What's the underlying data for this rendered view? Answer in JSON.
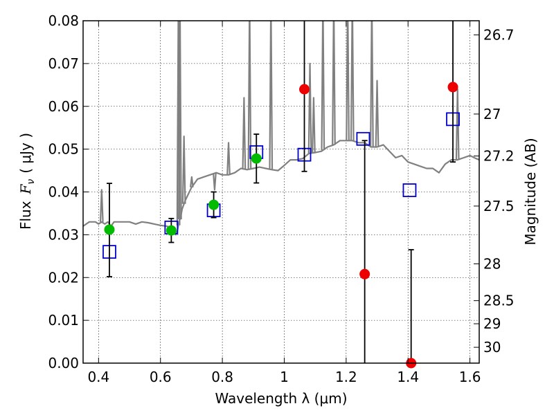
{
  "chart_data": {
    "type": "scatter",
    "xlabel": "Wavelength  λ (μm)",
    "ylabel": "Flux  F_ν  ( μJy )",
    "ylabel_parts": {
      "prefix": "Flux",
      "symbol": "F",
      "subscript": "ν",
      "unit": "( μJy )"
    },
    "y2label": "Magnitude (AB)",
    "xlim": [
      0.35,
      1.63
    ],
    "ylim": [
      0.0,
      0.08
    ],
    "x_ticks": [
      0.4,
      0.6,
      0.8,
      1.0,
      1.2,
      1.4,
      1.6
    ],
    "x_tick_labels": [
      "0.4",
      "0.6",
      "0.8",
      "1",
      "1.2",
      "1.4",
      "1.6"
    ],
    "y_ticks": [
      0.0,
      0.01,
      0.02,
      0.03,
      0.04,
      0.05,
      0.06,
      0.07,
      0.08
    ],
    "y_tick_labels": [
      "0.00",
      "0.01",
      "0.02",
      "0.03",
      "0.04",
      "0.05",
      "0.06",
      "0.07",
      "0.08"
    ],
    "y2_ticks": [
      {
        "label": "26.7",
        "flux": 0.0767
      },
      {
        "label": "27",
        "flux": 0.0582
      },
      {
        "label": "27.2",
        "flux": 0.0484
      },
      {
        "label": "27.5",
        "flux": 0.0367
      },
      {
        "label": "28",
        "flux": 0.0232
      },
      {
        "label": "28.5",
        "flux": 0.0146
      },
      {
        "label": "29",
        "flux": 0.0092
      },
      {
        "label": "30",
        "flux": 0.0037
      }
    ],
    "grid": true,
    "grid_style": "dotted",
    "colors": {
      "spectrum": "#808080",
      "detections": "#00bb00",
      "upper_limits": "#ee0000",
      "model": "#0000cc",
      "errorbars": "#000000"
    },
    "series": [
      {
        "style": "line",
        "x": [
          0.35,
          0.37,
          0.39,
          0.4,
          0.41,
          0.42,
          0.43,
          0.44,
          0.45,
          0.46,
          0.48,
          0.5,
          0.52,
          0.54,
          0.56,
          0.58,
          0.6,
          0.62,
          0.64,
          0.645,
          0.65,
          0.655,
          0.66,
          0.665,
          0.67,
          0.68,
          0.7,
          0.72,
          0.74,
          0.76,
          0.78,
          0.8,
          0.82,
          0.84,
          0.86,
          0.88,
          0.9,
          0.92,
          0.94,
          0.96,
          0.98,
          1.0,
          1.02,
          1.04,
          1.06,
          1.08,
          1.1,
          1.12,
          1.14,
          1.16,
          1.18,
          1.2,
          1.22,
          1.24,
          1.26,
          1.28,
          1.3,
          1.32,
          1.34,
          1.36,
          1.38,
          1.4,
          1.42,
          1.44,
          1.46,
          1.48,
          1.5,
          1.52,
          1.54,
          1.56,
          1.58,
          1.6,
          1.62,
          1.63
        ],
        "y": [
          0.032,
          0.033,
          0.033,
          0.0325,
          0.033,
          0.0325,
          0.033,
          0.032,
          0.033,
          0.033,
          0.033,
          0.033,
          0.0325,
          0.033,
          0.0328,
          0.0325,
          0.0322,
          0.032,
          0.0315,
          0.031,
          0.03,
          0.031,
          0.033,
          0.034,
          0.036,
          0.038,
          0.041,
          0.043,
          0.0435,
          0.044,
          0.0445,
          0.044,
          0.044,
          0.0445,
          0.0455,
          0.0452,
          0.0455,
          0.0458,
          0.0455,
          0.0452,
          0.045,
          0.0462,
          0.0475,
          0.0475,
          0.0478,
          0.049,
          0.0492,
          0.0495,
          0.0505,
          0.051,
          0.052,
          0.052,
          0.052,
          0.0515,
          0.0515,
          0.0505,
          0.0505,
          0.051,
          0.0495,
          0.048,
          0.0485,
          0.047,
          0.0465,
          0.046,
          0.0455,
          0.0455,
          0.0445,
          0.0465,
          0.0475,
          0.0475,
          0.048,
          0.0485,
          0.0478,
          0.0475
        ]
      },
      {
        "style": "peaks",
        "lines": [
          {
            "x": 0.41,
            "y": 0.0405
          },
          {
            "x": 0.658,
            "y": 0.085
          },
          {
            "x": 0.663,
            "y": 0.085
          },
          {
            "x": 0.676,
            "y": 0.053
          },
          {
            "x": 0.701,
            "y": 0.0435
          },
          {
            "x": 0.775,
            "y": 0.0405
          },
          {
            "x": 0.82,
            "y": 0.0515
          },
          {
            "x": 0.87,
            "y": 0.062
          },
          {
            "x": 0.888,
            "y": 0.085
          },
          {
            "x": 0.957,
            "y": 0.085
          },
          {
            "x": 1.083,
            "y": 0.07
          },
          {
            "x": 1.095,
            "y": 0.062
          },
          {
            "x": 1.125,
            "y": 0.085
          },
          {
            "x": 1.16,
            "y": 0.085
          },
          {
            "x": 1.205,
            "y": 0.085
          },
          {
            "x": 1.22,
            "y": 0.085
          },
          {
            "x": 1.283,
            "y": 0.085
          },
          {
            "x": 1.3,
            "y": 0.066
          },
          {
            "x": 1.56,
            "y": 0.064
          }
        ]
      },
      {
        "style": "model-squares",
        "x": [
          0.435,
          0.635,
          0.772,
          0.91,
          1.065,
          1.255,
          1.405,
          1.545
        ],
        "y": [
          0.026,
          0.0317,
          0.0357,
          0.0493,
          0.0487,
          0.0524,
          0.0404,
          0.057
        ]
      },
      {
        "style": "detections",
        "x": [
          0.435,
          0.635,
          0.772,
          0.91
        ],
        "y": [
          0.0312,
          0.031,
          0.037,
          0.0478
        ],
        "err_low": [
          0.0202,
          0.0282,
          0.034,
          0.0421
        ],
        "err_high": [
          0.042,
          0.0338,
          0.04,
          0.0535
        ]
      },
      {
        "style": "upper-limits",
        "x": [
          1.065,
          1.26,
          1.41,
          1.545
        ],
        "y": [
          0.064,
          0.0208,
          0.0,
          0.0645
        ],
        "err_low": [
          0.0448,
          0.0,
          0.0,
          0.047
        ],
        "err_high": [
          0.085,
          0.052,
          0.0265,
          0.085
        ]
      }
    ]
  }
}
